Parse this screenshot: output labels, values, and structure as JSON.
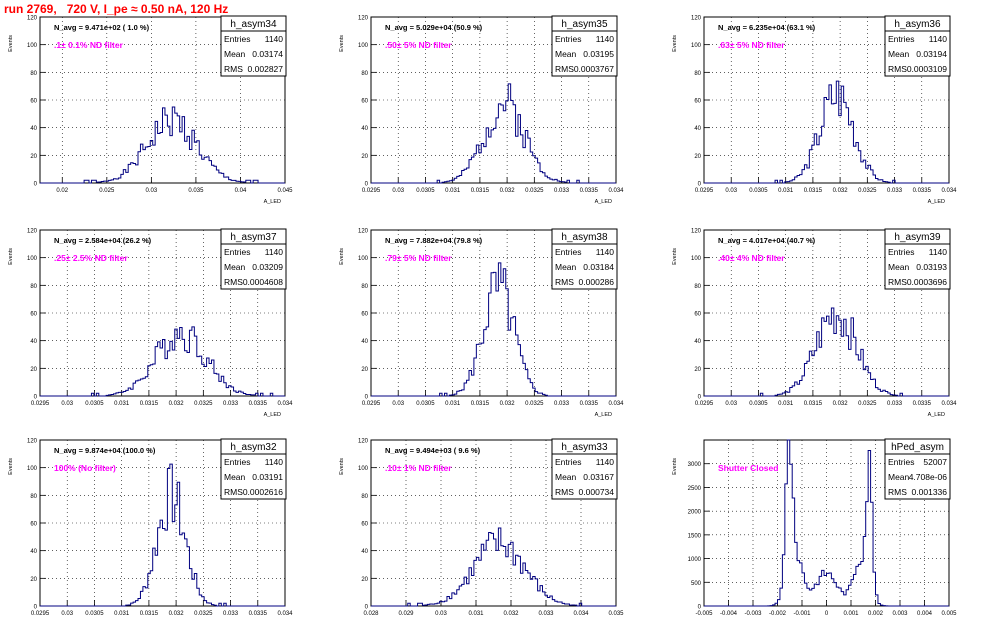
{
  "page": {
    "title": "run 2769,   720 V, I_pe ≈ 0.50 nA, 120 Hz"
  },
  "colors": {
    "hist": "#000080",
    "note": "#ff00ff",
    "title": "#ff0000",
    "grid": "#000000"
  },
  "stats_labels": {
    "entries": "Entries",
    "mean": "Mean",
    "rms": "RMS"
  },
  "axis": {
    "ylabel": "Events",
    "xlabel": "A_LED"
  },
  "chart_data": [
    {
      "type": "histogram",
      "name": "h_asym34",
      "navg": "N_avg = 9.471e+02 ( 1.0 %)",
      "note": ".1± 0.1% ND filter",
      "entries": "1140",
      "mean": "0.03174",
      "rms": "0.002827",
      "xlim": [
        0.0175,
        0.045
      ],
      "ylim": [
        0,
        120
      ],
      "yticks": [
        0,
        20,
        40,
        60,
        80,
        100,
        120
      ],
      "xticks": [
        "0.02",
        "0.025",
        "0.03",
        "0.035",
        "0.04",
        "0.045"
      ],
      "xtickvals": [
        0.02,
        0.025,
        0.03,
        0.035,
        0.04,
        0.045
      ],
      "peak_x": 0.0323,
      "peak_y": 45,
      "sigma": 0.0028,
      "seed": 1
    },
    {
      "type": "histogram",
      "name": "h_asym35",
      "navg": "N_avg = 5.029e+04 (50.9 %)",
      "note": ".50± 5% ND filter",
      "entries": "1140",
      "mean": "0.03195",
      "rms": "0.0003767",
      "xlim": [
        0.0295,
        0.034
      ],
      "ylim": [
        0,
        120
      ],
      "yticks": [
        0,
        20,
        40,
        60,
        80,
        100,
        120
      ],
      "xticks": [
        "0.0295",
        "0.03",
        "0.0305",
        "0.031",
        "0.0315",
        "0.032",
        "0.0325",
        "0.033",
        "0.0335",
        "0.034"
      ],
      "xtickvals": [
        0.0295,
        0.03,
        0.0305,
        0.031,
        0.0315,
        0.032,
        0.0325,
        0.033,
        0.0335,
        0.034
      ],
      "peak_x": 0.03195,
      "peak_y": 58,
      "sigma": 0.00037,
      "seed": 2
    },
    {
      "type": "histogram",
      "name": "h_asym36",
      "navg": "N_avg = 6.235e+04 (63.1 %)",
      "note": ".63± 5% ND filter",
      "entries": "1140",
      "mean": "0.03194",
      "rms": "0.0003109",
      "xlim": [
        0.0295,
        0.034
      ],
      "ylim": [
        0,
        120
      ],
      "yticks": [
        0,
        20,
        40,
        60,
        80,
        100,
        120
      ],
      "xticks": [
        "0.0295",
        "0.03",
        "0.0305",
        "0.031",
        "0.0315",
        "0.032",
        "0.0325",
        "0.033",
        "0.0335",
        "0.034"
      ],
      "xtickvals": [
        0.0295,
        0.03,
        0.0305,
        0.031,
        0.0315,
        0.032,
        0.0325,
        0.033,
        0.0335,
        0.034
      ],
      "peak_x": 0.03194,
      "peak_y": 65,
      "sigma": 0.00031,
      "seed": 3
    },
    {
      "type": "histogram",
      "name": "h_asym37",
      "navg": "N_avg = 2.584e+04 (26.2 %)",
      "note": ".25± 2.5% ND filter",
      "entries": "1140",
      "mean": "0.03209",
      "rms": "0.0004608",
      "xlim": [
        0.0295,
        0.034
      ],
      "ylim": [
        0,
        120
      ],
      "yticks": [
        0,
        20,
        40,
        60,
        80,
        100,
        120
      ],
      "xticks": [
        "0.0295",
        "0.03",
        "0.0305",
        "0.031",
        "0.0315",
        "0.032",
        "0.0325",
        "0.033",
        "0.0335",
        "0.034"
      ],
      "xtickvals": [
        0.0295,
        0.03,
        0.0305,
        0.031,
        0.0315,
        0.032,
        0.0325,
        0.033,
        0.0335,
        0.034
      ],
      "peak_x": 0.03209,
      "peak_y": 46,
      "sigma": 0.00046,
      "seed": 4
    },
    {
      "type": "histogram",
      "name": "h_asym38",
      "navg": "N_avg = 7.882e+04 (79.8 %)",
      "note": ".79± 5% ND filter",
      "entries": "1140",
      "mean": "0.03184",
      "rms": "0.000286",
      "xlim": [
        0.0295,
        0.034
      ],
      "ylim": [
        0,
        120
      ],
      "yticks": [
        0,
        20,
        40,
        60,
        80,
        100,
        120
      ],
      "xticks": [
        "0.0295",
        "0.03",
        "0.0305",
        "0.031",
        "0.0315",
        "0.032",
        "0.0325",
        "0.033",
        "0.0335",
        "0.034"
      ],
      "xtickvals": [
        0.0295,
        0.03,
        0.0305,
        0.031,
        0.0315,
        0.032,
        0.0325,
        0.033,
        0.0335,
        0.034
      ],
      "peak_x": 0.03184,
      "peak_y": 78,
      "sigma": 0.000286,
      "seed": 5
    },
    {
      "type": "histogram",
      "name": "h_asym39",
      "navg": "N_avg = 4.017e+04 (40.7 %)",
      "note": ".40± 4% ND filter",
      "entries": "1140",
      "mean": "0.03193",
      "rms": "0.0003696",
      "xlim": [
        0.0295,
        0.034
      ],
      "ylim": [
        0,
        120
      ],
      "yticks": [
        0,
        20,
        40,
        60,
        80,
        100,
        120
      ],
      "xticks": [
        "0.0295",
        "0.03",
        "0.0305",
        "0.031",
        "0.0315",
        "0.032",
        "0.0325",
        "0.033",
        "0.0335",
        "0.034"
      ],
      "xtickvals": [
        0.0295,
        0.03,
        0.0305,
        0.031,
        0.0315,
        0.032,
        0.0325,
        0.033,
        0.0335,
        0.034
      ],
      "peak_x": 0.03193,
      "peak_y": 60,
      "sigma": 0.00037,
      "seed": 6
    },
    {
      "type": "histogram",
      "name": "h_asym32",
      "navg": "N_avg = 9.874e+04 (100.0 %)",
      "note": "100% (No filter)",
      "entries": "1140",
      "mean": "0.03191",
      "rms": "0.0002616",
      "xlim": [
        0.0295,
        0.034
      ],
      "ylim": [
        0,
        120
      ],
      "yticks": [
        0,
        20,
        40,
        60,
        80,
        100,
        120
      ],
      "xticks": [
        "0.0295",
        "0.03",
        "0.0305",
        "0.031",
        "0.0315",
        "0.032",
        "0.0325",
        "0.033",
        "0.0335",
        "0.034"
      ],
      "xtickvals": [
        0.0295,
        0.03,
        0.0305,
        0.031,
        0.0315,
        0.032,
        0.0325,
        0.033,
        0.0335,
        0.034
      ],
      "peak_x": 0.03191,
      "peak_y": 80,
      "sigma": 0.00026,
      "seed": 7
    },
    {
      "type": "histogram",
      "name": "h_asym33",
      "navg": "N_avg = 9.494e+03 ( 9.6 %)",
      "note": ".10± 1% ND filter",
      "entries": "1140",
      "mean": "0.03167",
      "rms": "0.000734",
      "xlim": [
        0.028,
        0.035
      ],
      "ylim": [
        0,
        120
      ],
      "yticks": [
        0,
        20,
        40,
        60,
        80,
        100,
        120
      ],
      "xticks": [
        "0.028",
        "0.029",
        "0.03",
        "0.031",
        "0.032",
        "0.033",
        "0.034",
        "0.035"
      ],
      "xtickvals": [
        0.028,
        0.029,
        0.03,
        0.031,
        0.032,
        0.033,
        0.034,
        0.035
      ],
      "peak_x": 0.03167,
      "peak_y": 45,
      "sigma": 0.00073,
      "seed": 8
    },
    {
      "type": "histogram",
      "name": "hPed_asym",
      "navg": "",
      "note": "Shutter Closed",
      "entries": "52007",
      "mean": "4.708e-06",
      "rms": "0.001336",
      "xlim": [
        -0.005,
        0.005
      ],
      "ylim": [
        0,
        3500
      ],
      "yticks": [
        0,
        500,
        1000,
        1500,
        2000,
        2500,
        3000
      ],
      "xticks": [
        "-0.005",
        "-0.004",
        "-0.003",
        "-0.002",
        "-0.001",
        "0",
        "0.001",
        "0.002",
        "0.003",
        "0.004",
        "0.005"
      ],
      "xtickvals": [
        -0.005,
        -0.004,
        -0.003,
        -0.002,
        -0.001,
        0,
        0.001,
        0.002,
        0.003,
        0.004,
        0.005
      ],
      "profile": "pedestal",
      "seed": 9
    }
  ]
}
